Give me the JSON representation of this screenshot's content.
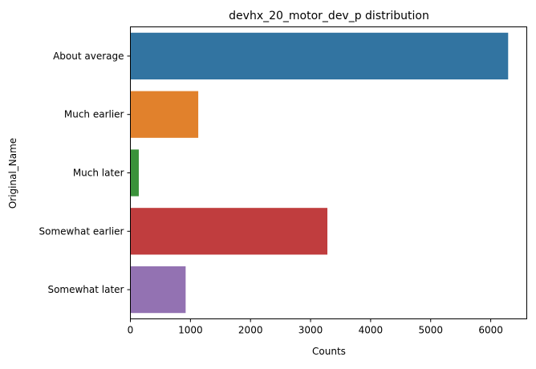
{
  "chart_data": {
    "type": "bar",
    "orientation": "horizontal",
    "title": "devhx_20_motor_dev_p distribution",
    "xlabel": "Counts",
    "ylabel": "Original_Name",
    "categories": [
      "About average",
      "Much earlier",
      "Much later",
      "Somewhat earlier",
      "Somewhat later"
    ],
    "values": [
      6290,
      1130,
      140,
      3280,
      920
    ],
    "colors": [
      "#3274a1",
      "#e1812c",
      "#3a923a",
      "#c03d3e",
      "#9372b2"
    ],
    "xlim": [
      0,
      6600
    ],
    "xticks": [
      0,
      1000,
      2000,
      3000,
      4000,
      5000,
      6000
    ],
    "xtick_labels": [
      "0",
      "1000",
      "2000",
      "3000",
      "4000",
      "5000",
      "6000"
    ],
    "grid": false,
    "legend": "none"
  }
}
